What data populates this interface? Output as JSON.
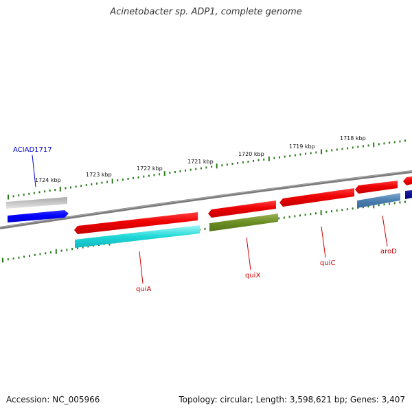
{
  "title": "Acinetobacter sp. ADP1, complete genome",
  "footer": {
    "accession": "Accession: NC_005966",
    "summary": "Topology: circular; Length: 3,598,621 bp; Genes: 3,407"
  },
  "colors": {
    "backbone": "#808080",
    "tick": "#2a7a1a",
    "label_red": "#cc0000",
    "label_blue": "#0000cc"
  },
  "ticks": [
    "1724 kbp",
    "1723 kbp",
    "1722 kbp",
    "1721 kbp",
    "1720 kbp",
    "1719 kbp",
    "1718 kbp"
  ],
  "gene_labels": {
    "aciad": "ACIAD1717",
    "quiA": "quiA",
    "quiX": "quiX",
    "quiC": "quiC",
    "aroD": "aroD"
  }
}
